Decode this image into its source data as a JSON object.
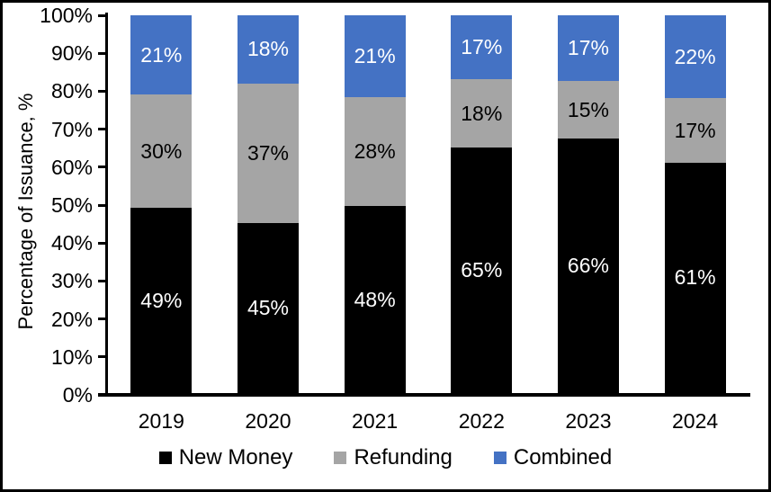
{
  "chart_data": {
    "type": "bar",
    "stacked": true,
    "title": "",
    "xlabel": "",
    "ylabel": "Percentage of Issuance, %",
    "ylim": [
      0,
      100
    ],
    "grid": false,
    "legend_position": "bottom",
    "categories": [
      "2019",
      "2020",
      "2021",
      "2022",
      "2023",
      "2024"
    ],
    "y_ticks": [
      "0%",
      "10%",
      "20%",
      "30%",
      "40%",
      "50%",
      "60%",
      "70%",
      "80%",
      "90%",
      "100%"
    ],
    "series": [
      {
        "name": "New Money",
        "color": "#000000",
        "label_color": "#ffffff",
        "values": [
          49,
          45,
          48,
          65,
          66,
          61
        ],
        "labels": [
          "49%",
          "45%",
          "48%",
          "65%",
          "66%",
          "61%"
        ]
      },
      {
        "name": "Refunding",
        "color": "#A5A5A5",
        "label_color": "#000000",
        "values": [
          30,
          37,
          28,
          18,
          15,
          17
        ],
        "labels": [
          "30%",
          "37%",
          "28%",
          "18%",
          "15%",
          "17%"
        ]
      },
      {
        "name": "Combined",
        "color": "#4472C4",
        "label_color": "#ffffff",
        "values": [
          21,
          18,
          21,
          17,
          17,
          22
        ],
        "labels": [
          "21%",
          "18%",
          "21%",
          "17%",
          "17%",
          "22%"
        ]
      }
    ]
  }
}
